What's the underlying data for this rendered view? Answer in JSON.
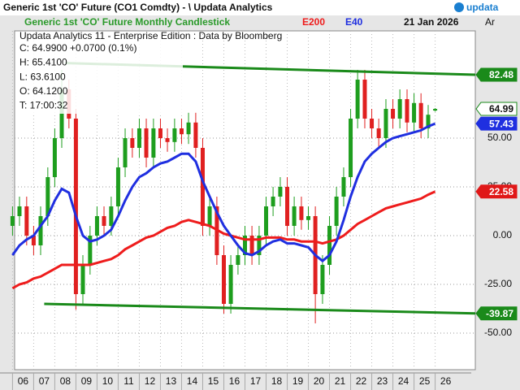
{
  "window_title": "Generic 1st 'CO' Future (CO1 Comdty) - \\ Updata Analytics",
  "logo": "updata",
  "chart_data": {
    "type": "candlestick",
    "title": "Generic 1st 'CO' Future Monthly Candlestick",
    "date": "21 Jan 2026",
    "axis_tab": "Ar",
    "info": [
      "Updata Analytics 11 - Enterprise Edition : Data by Bloomberg",
      "C: 64.9900  +0.0700 (0.1%)",
      "H: 65.4100",
      "L: 63.6100",
      "O: 64.1200",
      "T: 17:00:32"
    ],
    "x": [
      2006,
      2006.33,
      2006.67,
      2007,
      2007.33,
      2007.67,
      2008,
      2008.33,
      2008.67,
      2009,
      2009.33,
      2009.67,
      2010,
      2010.33,
      2010.67,
      2011,
      2011.33,
      2011.67,
      2012,
      2012.33,
      2012.67,
      2013,
      2013.33,
      2013.67,
      2014,
      2014.33,
      2014.67,
      2015,
      2015.33,
      2015.67,
      2016,
      2016.33,
      2016.67,
      2017,
      2017.33,
      2017.67,
      2018,
      2018.33,
      2018.67,
      2019,
      2019.33,
      2019.67,
      2020,
      2020.33,
      2020.67,
      2021,
      2021.33,
      2021.67,
      2022,
      2022.33,
      2022.67,
      2023,
      2023.33,
      2023.67,
      2024,
      2024.33,
      2024.67,
      2025,
      2025.33,
      2025.67,
      2026
    ],
    "open": [
      5,
      10,
      15,
      0,
      -5,
      10,
      30,
      50,
      75,
      60,
      -30,
      -15,
      0,
      10,
      5,
      15,
      35,
      50,
      45,
      55,
      40,
      55,
      50,
      48,
      55,
      52,
      58,
      45,
      5,
      15,
      -10,
      -35,
      -15,
      -10,
      0,
      -10,
      0,
      15,
      20,
      25,
      5,
      15,
      8,
      10,
      -30,
      -15,
      5,
      20,
      30,
      60,
      80,
      60,
      55,
      50,
      65,
      60,
      70,
      58,
      68,
      55,
      64.12
    ],
    "high": [
      15,
      20,
      20,
      5,
      15,
      35,
      55,
      85,
      80,
      65,
      -10,
      5,
      15,
      15,
      20,
      40,
      55,
      55,
      60,
      60,
      60,
      60,
      55,
      60,
      60,
      63,
      63,
      50,
      20,
      20,
      -5,
      -10,
      -5,
      5,
      5,
      5,
      20,
      25,
      30,
      30,
      20,
      20,
      15,
      15,
      -10,
      10,
      25,
      35,
      65,
      85,
      85,
      65,
      60,
      70,
      70,
      75,
      75,
      73,
      73,
      67,
      65.41
    ],
    "low": [
      0,
      5,
      -5,
      -10,
      -10,
      5,
      25,
      45,
      55,
      -38,
      -35,
      -20,
      -5,
      0,
      0,
      10,
      30,
      40,
      40,
      35,
      35,
      45,
      43,
      43,
      47,
      47,
      40,
      0,
      0,
      -15,
      -40,
      -40,
      -20,
      -15,
      -15,
      -15,
      -5,
      10,
      15,
      0,
      0,
      3,
      3,
      -45,
      -35,
      -20,
      0,
      15,
      25,
      55,
      55,
      50,
      45,
      45,
      55,
      55,
      53,
      53,
      50,
      50,
      63.61
    ],
    "close": [
      10,
      15,
      0,
      -5,
      10,
      30,
      50,
      75,
      60,
      -30,
      -15,
      0,
      10,
      5,
      15,
      35,
      50,
      45,
      55,
      40,
      55,
      50,
      48,
      55,
      52,
      58,
      45,
      5,
      15,
      -10,
      -35,
      -15,
      -10,
      0,
      -10,
      0,
      15,
      20,
      25,
      5,
      15,
      8,
      10,
      -30,
      -15,
      5,
      20,
      30,
      60,
      80,
      60,
      55,
      50,
      65,
      60,
      70,
      58,
      68,
      55,
      62,
      64.99
    ],
    "up_color": "#1e9e1e",
    "down_color": "#e02020",
    "series": [
      {
        "name": "E200",
        "color": "#ee1c1c",
        "values": [
          -27,
          -25,
          -24,
          -22,
          -21,
          -19,
          -17,
          -15,
          -15,
          -15,
          -15,
          -15,
          -14,
          -13,
          -12,
          -10,
          -7,
          -5,
          -3,
          -1,
          0,
          2,
          4,
          5,
          7,
          8,
          7,
          6,
          5,
          3,
          1,
          0,
          -1,
          -2,
          -2,
          -2,
          -1,
          -1,
          -1,
          -2,
          -2,
          -3,
          -3,
          -3,
          -4,
          -3,
          -2,
          0,
          3,
          6,
          8,
          10,
          12,
          14,
          15,
          16,
          17,
          18,
          19,
          21,
          22.58
        ]
      },
      {
        "name": "E40",
        "color": "#1f2fe0",
        "values": [
          -10,
          -5,
          -2,
          0,
          5,
          10,
          18,
          24,
          22,
          10,
          0,
          -3,
          -2,
          0,
          3,
          10,
          18,
          25,
          30,
          32,
          35,
          37,
          38,
          40,
          42,
          42,
          38,
          28,
          20,
          12,
          5,
          0,
          -5,
          -9,
          -10,
          -8,
          -5,
          -3,
          -2,
          -4,
          -4,
          -5,
          -6,
          -10,
          -13,
          -10,
          -3,
          8,
          20,
          30,
          38,
          42,
          45,
          48,
          50,
          51,
          52,
          53,
          54,
          56,
          57.43
        ]
      }
    ],
    "trend_lines": [
      {
        "color": "#1a8a1a",
        "x": [
          2008.5,
          2027.9
        ],
        "values": [
          88.5,
          82.48
        ]
      },
      {
        "color": "#1a8a1a",
        "x": [
          2007.5,
          2027.9
        ],
        "values": [
          -35,
          -39.87
        ]
      }
    ],
    "badges": [
      {
        "value": 82.48,
        "color": "#1a8a1a"
      },
      {
        "value": 64.99,
        "color": "#ffffff"
      },
      {
        "value": 57.43,
        "color": "#1f2fe0"
      },
      {
        "value": 22.58,
        "color": "#e01818"
      },
      {
        "value": -39.87,
        "color": "#1a8a1a"
      }
    ],
    "ylim": [
      -68.75,
      105
    ],
    "yticks": [
      {
        "value": -50,
        "label": "-50.00"
      },
      {
        "value": -25,
        "label": "-25.00"
      },
      {
        "value": 0,
        "label": "0.00"
      },
      {
        "value": 25,
        "label": "25.00"
      },
      {
        "value": 50,
        "label": "50.00"
      }
    ],
    "xlim": [
      2006.1,
      2027.9
    ],
    "xticks": [
      {
        "value": 2006,
        "label": "06"
      },
      {
        "value": 2007,
        "label": "07"
      },
      {
        "value": 2008,
        "label": "08"
      },
      {
        "value": 2009,
        "label": "09"
      },
      {
        "value": 2010,
        "label": "10"
      },
      {
        "value": 2011,
        "label": "11"
      },
      {
        "value": 2012,
        "label": "12"
      },
      {
        "value": 2013,
        "label": "13"
      },
      {
        "value": 2014,
        "label": "14"
      },
      {
        "value": 2015,
        "label": "15"
      },
      {
        "value": 2016,
        "label": "16"
      },
      {
        "value": 2017,
        "label": "17"
      },
      {
        "value": 2018,
        "label": "18"
      },
      {
        "value": 2019,
        "label": "19"
      },
      {
        "value": 2020,
        "label": "20"
      },
      {
        "value": 2021,
        "label": "21"
      },
      {
        "value": 2022,
        "label": "22"
      },
      {
        "value": 2023,
        "label": "23"
      },
      {
        "value": 2024,
        "label": "24"
      },
      {
        "value": 2025,
        "label": "25"
      },
      {
        "value": 2026,
        "label": "26"
      }
    ],
    "grid": true
  }
}
